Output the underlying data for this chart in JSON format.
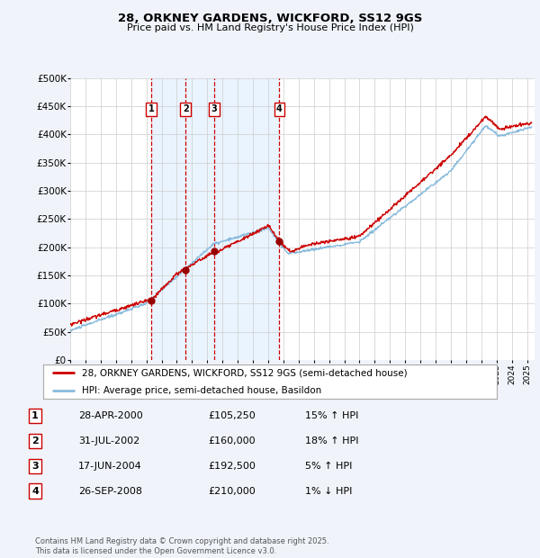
{
  "title": "28, ORKNEY GARDENS, WICKFORD, SS12 9GS",
  "subtitle": "Price paid vs. HM Land Registry's House Price Index (HPI)",
  "ylim": [
    0,
    500000
  ],
  "yticks": [
    0,
    50000,
    100000,
    150000,
    200000,
    250000,
    300000,
    350000,
    400000,
    450000,
    500000
  ],
  "ytick_labels": [
    "£0",
    "£50K",
    "£100K",
    "£150K",
    "£200K",
    "£250K",
    "£300K",
    "£350K",
    "£400K",
    "£450K",
    "£500K"
  ],
  "bg_color": "#f0f4fa",
  "plot_bg_color": "#ffffff",
  "red_line_color": "#cc0000",
  "blue_line_color": "#88bbdd",
  "shade_color": "#ddeeff",
  "sale_marker_color": "#990000",
  "vline_color": "#cc0000",
  "shade_x_start": 2000.32,
  "shade_x_end": 2008.74,
  "sales": [
    {
      "num": 1,
      "date_dec": 2000.32,
      "price": 105250,
      "label": "1"
    },
    {
      "num": 2,
      "date_dec": 2002.58,
      "price": 160000,
      "label": "2"
    },
    {
      "num": 3,
      "date_dec": 2004.46,
      "price": 192500,
      "label": "3"
    },
    {
      "num": 4,
      "date_dec": 2008.74,
      "price": 210000,
      "label": "4"
    }
  ],
  "legend_entries": [
    {
      "label": "28, ORKNEY GARDENS, WICKFORD, SS12 9GS (semi-detached house)",
      "color": "#cc0000"
    },
    {
      "label": "HPI: Average price, semi-detached house, Basildon",
      "color": "#88bbdd"
    }
  ],
  "table_rows": [
    {
      "num": "1",
      "date": "28-APR-2000",
      "price": "£105,250",
      "pct": "15% ↑ HPI"
    },
    {
      "num": "2",
      "date": "31-JUL-2002",
      "price": "£160,000",
      "pct": "18% ↑ HPI"
    },
    {
      "num": "3",
      "date": "17-JUN-2004",
      "price": "£192,500",
      "pct": "5% ↑ HPI"
    },
    {
      "num": "4",
      "date": "26-SEP-2008",
      "price": "£210,000",
      "pct": "1% ↓ HPI"
    }
  ],
  "footer": "Contains HM Land Registry data © Crown copyright and database right 2025.\nThis data is licensed under the Open Government Licence v3.0.",
  "xmin": 1995,
  "xmax": 2025.5
}
